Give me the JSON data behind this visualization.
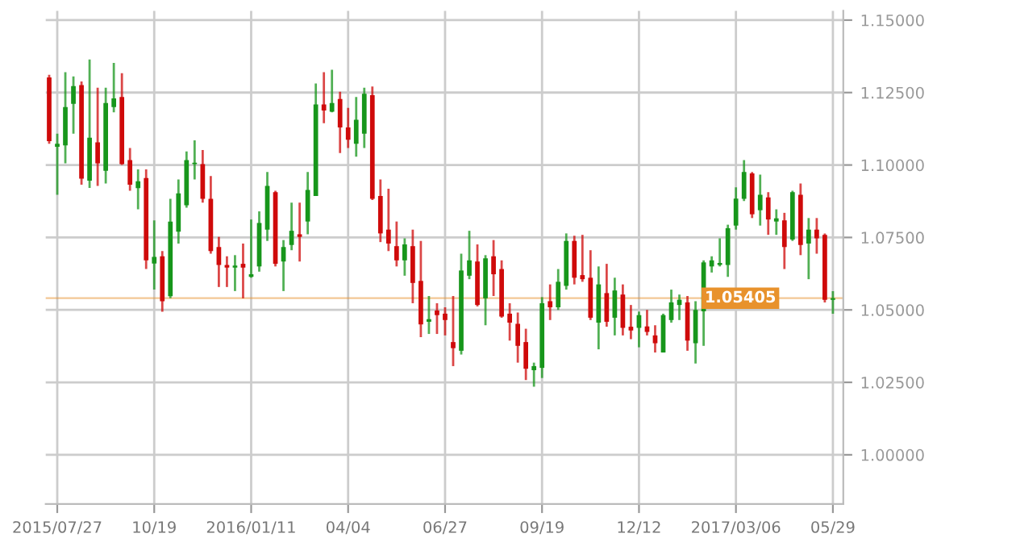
{
  "chart_data": {
    "type": "candlestick",
    "x": [
      "2015-07-20",
      "2015-07-27",
      "2015-08-03",
      "2015-08-10",
      "2015-08-17",
      "2015-08-24",
      "2015-08-31",
      "2015-09-07",
      "2015-09-14",
      "2015-09-21",
      "2015-09-28",
      "2015-10-05",
      "2015-10-12",
      "2015-10-19",
      "2015-10-26",
      "2015-11-02",
      "2015-11-09",
      "2015-11-16",
      "2015-11-23",
      "2015-11-30",
      "2015-12-07",
      "2015-12-14",
      "2015-12-21",
      "2015-12-28",
      "2016-01-04",
      "2016-01-11",
      "2016-01-18",
      "2016-01-25",
      "2016-02-01",
      "2016-02-08",
      "2016-02-15",
      "2016-02-22",
      "2016-02-29",
      "2016-03-07",
      "2016-03-14",
      "2016-03-21",
      "2016-03-28",
      "2016-04-04",
      "2016-04-11",
      "2016-04-18",
      "2016-04-25",
      "2016-05-02",
      "2016-05-09",
      "2016-05-16",
      "2016-05-23",
      "2016-05-30",
      "2016-06-06",
      "2016-06-13",
      "2016-06-20",
      "2016-06-27",
      "2016-07-04",
      "2016-07-11",
      "2016-07-18",
      "2016-07-25",
      "2016-08-01",
      "2016-08-08",
      "2016-08-15",
      "2016-08-22",
      "2016-08-29",
      "2016-09-05",
      "2016-09-12",
      "2016-09-19",
      "2016-09-26",
      "2016-10-03",
      "2016-10-10",
      "2016-10-17",
      "2016-10-24",
      "2016-10-31",
      "2016-11-07",
      "2016-11-14",
      "2016-11-21",
      "2016-11-28",
      "2016-12-05",
      "2016-12-12",
      "2016-12-19",
      "2016-12-26",
      "2017-01-02",
      "2017-01-09",
      "2017-01-16",
      "2017-01-23",
      "2017-01-30",
      "2017-02-06",
      "2017-02-13",
      "2017-02-20",
      "2017-02-27",
      "2017-03-06",
      "2017-03-13",
      "2017-03-20",
      "2017-03-27",
      "2017-04-03",
      "2017-04-10",
      "2017-04-17",
      "2017-04-24",
      "2017-05-01",
      "2017-05-08",
      "2017-05-15",
      "2017-05-22",
      "2017-05-29"
    ],
    "ohlc": [
      [
        1.1302,
        1.1311,
        1.1073,
        1.1082
      ],
      [
        1.1063,
        1.1108,
        1.0897,
        1.1073
      ],
      [
        1.1068,
        1.132,
        1.1006,
        1.12
      ],
      [
        1.1211,
        1.1306,
        1.1108,
        1.1272
      ],
      [
        1.1276,
        1.1288,
        1.0932,
        1.0953
      ],
      [
        1.0946,
        1.1364,
        1.0921,
        1.1094
      ],
      [
        1.1078,
        1.1267,
        1.0928,
        1.1006
      ],
      [
        1.098,
        1.1267,
        1.0936,
        1.1214
      ],
      [
        1.12,
        1.1352,
        1.1182,
        1.123
      ],
      [
        1.1235,
        1.1317,
        1.1,
        1.1003
      ],
      [
        1.1017,
        1.1059,
        1.0911,
        1.0932
      ],
      [
        1.092,
        1.0985,
        1.0847,
        1.0944
      ],
      [
        1.0955,
        1.0985,
        1.0641,
        1.0671
      ],
      [
        1.066,
        1.0809,
        1.057,
        1.0683
      ],
      [
        1.0685,
        1.0703,
        1.0494,
        1.053
      ],
      [
        1.0547,
        1.0883,
        1.054,
        1.0805
      ],
      [
        1.077,
        1.095,
        1.0729,
        1.0902
      ],
      [
        1.0861,
        1.1047,
        1.0853,
        1.1017
      ],
      [
        1.1003,
        1.1085,
        1.095,
        1.1008
      ],
      [
        1.1003,
        1.1052,
        1.087,
        1.0883
      ],
      [
        1.0883,
        1.0962,
        1.0694,
        1.0703
      ],
      [
        1.0717,
        1.0752,
        1.0579,
        1.0655
      ],
      [
        1.0655,
        1.0685,
        1.0579,
        1.0646
      ],
      [
        1.0646,
        1.0689,
        1.0565,
        1.0653
      ],
      [
        1.0659,
        1.0729,
        1.054,
        1.0646
      ],
      [
        1.0614,
        1.0812,
        1.0611,
        1.0623
      ],
      [
        1.065,
        1.084,
        1.0632,
        1.08
      ],
      [
        1.0777,
        1.0976,
        1.0738,
        1.0928
      ],
      [
        1.0906,
        1.0911,
        1.065,
        1.0659
      ],
      [
        1.0667,
        1.0741,
        1.0565,
        1.0717
      ],
      [
        1.0724,
        1.087,
        1.0706,
        1.0773
      ],
      [
        1.0761,
        1.087,
        1.0667,
        1.0752
      ],
      [
        1.0805,
        1.0976,
        1.0761,
        1.0914
      ],
      [
        1.0893,
        1.1281,
        1.0893,
        1.1209
      ],
      [
        1.1209,
        1.132,
        1.1144,
        1.1188
      ],
      [
        1.1184,
        1.1329,
        1.1182,
        1.1214
      ],
      [
        1.1228,
        1.1253,
        1.1041,
        1.113
      ],
      [
        1.113,
        1.1197,
        1.1059,
        1.1087
      ],
      [
        1.1073,
        1.1235,
        1.1029,
        1.1156
      ],
      [
        1.1108,
        1.1267,
        1.1059,
        1.1246
      ],
      [
        1.1241,
        1.1271,
        1.0879,
        1.0883
      ],
      [
        1.0893,
        1.095,
        1.0734,
        1.0764
      ],
      [
        1.0777,
        1.0918,
        1.0703,
        1.0729
      ],
      [
        1.072,
        1.0805,
        1.065,
        1.0671
      ],
      [
        1.0671,
        1.0747,
        1.0618,
        1.0726
      ],
      [
        1.072,
        1.0777,
        1.0523,
        1.0593
      ],
      [
        1.06,
        1.0738,
        1.0406,
        1.045
      ],
      [
        1.0459,
        1.0548,
        1.0417,
        1.0468
      ],
      [
        1.0498,
        1.0523,
        1.0417,
        1.0482
      ],
      [
        1.0487,
        1.0509,
        1.0412,
        1.0465
      ],
      [
        1.0389,
        1.0548,
        1.0306,
        1.0368
      ],
      [
        1.0359,
        1.0694,
        1.0346,
        1.0636
      ],
      [
        1.0618,
        1.0773,
        1.0606,
        1.0671
      ],
      [
        1.0667,
        1.0726,
        1.0512,
        1.0517
      ],
      [
        1.054,
        1.0689,
        1.0447,
        1.0678
      ],
      [
        1.0685,
        1.0741,
        1.0548,
        1.0623
      ],
      [
        1.0641,
        1.0671,
        1.0473,
        1.0477
      ],
      [
        1.0487,
        1.0523,
        1.0394,
        1.0456
      ],
      [
        1.0452,
        1.0491,
        1.0318,
        1.0376
      ],
      [
        1.0389,
        1.0435,
        1.0258,
        1.0297
      ],
      [
        1.0292,
        1.0318,
        1.0235,
        1.0306
      ],
      [
        1.03,
        1.0544,
        1.0265,
        1.0523
      ],
      [
        1.053,
        1.0588,
        1.0465,
        1.0509
      ],
      [
        1.0509,
        1.0641,
        1.05,
        1.0597
      ],
      [
        1.0583,
        1.0764,
        1.057,
        1.0738
      ],
      [
        1.0738,
        1.0756,
        1.0588,
        1.0611
      ],
      [
        1.062,
        1.0759,
        1.0597,
        1.0606
      ],
      [
        1.0611,
        1.0706,
        1.0465,
        1.0473
      ],
      [
        1.0456,
        1.065,
        1.0364,
        1.0588
      ],
      [
        1.0558,
        1.0659,
        1.0442,
        1.0459
      ],
      [
        1.0473,
        1.0611,
        1.0412,
        1.0567
      ],
      [
        1.0553,
        1.0588,
        1.0412,
        1.0438
      ],
      [
        1.0442,
        1.0517,
        1.0399,
        1.0429
      ],
      [
        1.0438,
        1.0494,
        1.0371,
        1.0482
      ],
      [
        1.0443,
        1.05,
        1.0412,
        1.0424
      ],
      [
        1.0412,
        1.0447,
        1.0353,
        1.0385
      ],
      [
        1.0353,
        1.0487,
        1.0353,
        1.0482
      ],
      [
        1.0465,
        1.057,
        1.0456,
        1.0526
      ],
      [
        1.0517,
        1.0553,
        1.0465,
        1.0535
      ],
      [
        1.0526,
        1.0548,
        1.0359,
        1.0394
      ],
      [
        1.0385,
        1.053,
        1.0315,
        1.05
      ],
      [
        1.0495,
        1.0671,
        1.0376,
        1.0664
      ],
      [
        1.065,
        1.0685,
        1.0629,
        1.0671
      ],
      [
        1.0655,
        1.0747,
        1.065,
        1.0662
      ],
      [
        1.0655,
        1.0794,
        1.0614,
        1.0782
      ],
      [
        1.0791,
        1.0923,
        1.0777,
        1.0884
      ],
      [
        1.0883,
        1.1017,
        1.0876,
        1.0976
      ],
      [
        1.0971,
        1.0976,
        1.0817,
        1.083
      ],
      [
        1.0844,
        1.0967,
        1.0791,
        1.0897
      ],
      [
        1.0888,
        1.0906,
        1.0759,
        1.0812
      ],
      [
        1.0805,
        1.0847,
        1.0759,
        1.0816
      ],
      [
        1.0809,
        1.0835,
        1.0641,
        1.0717
      ],
      [
        1.0743,
        1.0911,
        1.0738,
        1.0906
      ],
      [
        1.0897,
        1.0936,
        1.0689,
        1.0724
      ],
      [
        1.0729,
        1.0817,
        1.0606,
        1.0777
      ],
      [
        1.0777,
        1.0817,
        1.0694,
        1.0747
      ],
      [
        1.0759,
        1.0764,
        1.0526,
        1.0535
      ],
      [
        1.0535,
        1.0565,
        1.0487,
        1.05405
      ]
    ],
    "colors": [
      "#cf0a0a",
      "#17961b",
      "#17961b",
      "#17961b",
      "#cf0a0a",
      "#17961b",
      "#cf0a0a",
      "#17961b",
      "#17961b",
      "#cf0a0a",
      "#cf0a0a",
      "#17961b",
      "#cf0a0a",
      "#17961b",
      "#cf0a0a",
      "#17961b",
      "#17961b",
      "#17961b",
      "#17961b",
      "#cf0a0a",
      "#cf0a0a",
      "#cf0a0a",
      "#cf0a0a",
      "#17961b",
      "#cf0a0a",
      "#17961b",
      "#17961b",
      "#17961b",
      "#cf0a0a",
      "#17961b",
      "#17961b",
      "#cf0a0a",
      "#17961b",
      "#17961b",
      "#cf0a0a",
      "#17961b",
      "#cf0a0a",
      "#cf0a0a",
      "#17961b",
      "#17961b",
      "#cf0a0a",
      "#cf0a0a",
      "#cf0a0a",
      "#cf0a0a",
      "#17961b",
      "#cf0a0a",
      "#cf0a0a",
      "#17961b",
      "#cf0a0a",
      "#cf0a0a",
      "#cf0a0a",
      "#17961b",
      "#17961b",
      "#cf0a0a",
      "#17961b",
      "#cf0a0a",
      "#cf0a0a",
      "#cf0a0a",
      "#cf0a0a",
      "#cf0a0a",
      "#17961b",
      "#17961b",
      "#cf0a0a",
      "#17961b",
      "#17961b",
      "#cf0a0a",
      "#cf0a0a",
      "#cf0a0a",
      "#17961b",
      "#cf0a0a",
      "#17961b",
      "#cf0a0a",
      "#cf0a0a",
      "#17961b",
      "#cf0a0a",
      "#cf0a0a",
      "#17961b",
      "#17961b",
      "#17961b",
      "#cf0a0a",
      "#17961b",
      "#17961b",
      "#17961b",
      "#17961b",
      "#17961b",
      "#17961b",
      "#17961b",
      "#cf0a0a",
      "#17961b",
      "#cf0a0a",
      "#17961b",
      "#cf0a0a",
      "#17961b",
      "#cf0a0a",
      "#17961b",
      "#cf0a0a",
      "#cf0a0a",
      "#17961b"
    ],
    "xlim": [
      "2015-07-17",
      "2017-06-07"
    ],
    "xticks": [
      {
        "value": "2015-07-27",
        "label": "2015/07/27"
      },
      {
        "value": "2015-10-19",
        "label": "10/19"
      },
      {
        "value": "2016-01-11",
        "label": "2016/01/11"
      },
      {
        "value": "2016-04-04",
        "label": "04/04"
      },
      {
        "value": "2016-06-27",
        "label": "06/27"
      },
      {
        "value": "2016-09-19",
        "label": "09/19"
      },
      {
        "value": "2016-12-12",
        "label": "12/12"
      },
      {
        "value": "2017-03-06",
        "label": "2017/03/06"
      },
      {
        "value": "2017-05-29",
        "label": "05/29"
      }
    ],
    "ylim": [
      0.983,
      1.1532
    ],
    "yticks": [
      {
        "value": 1.0,
        "label": "1.00000"
      },
      {
        "value": 1.025,
        "label": "1.02500"
      },
      {
        "value": 1.05,
        "label": "1.05000"
      },
      {
        "value": 1.075,
        "label": "1.07500"
      },
      {
        "value": 1.1,
        "label": "1.10000"
      },
      {
        "value": 1.125,
        "label": "1.12500"
      },
      {
        "value": 1.15,
        "label": "1.15000"
      }
    ],
    "ref_lines": [
      {
        "axis": "y",
        "value": 1.05405,
        "label": "1.05405",
        "color": "#e8922c"
      }
    ],
    "grid": true
  }
}
